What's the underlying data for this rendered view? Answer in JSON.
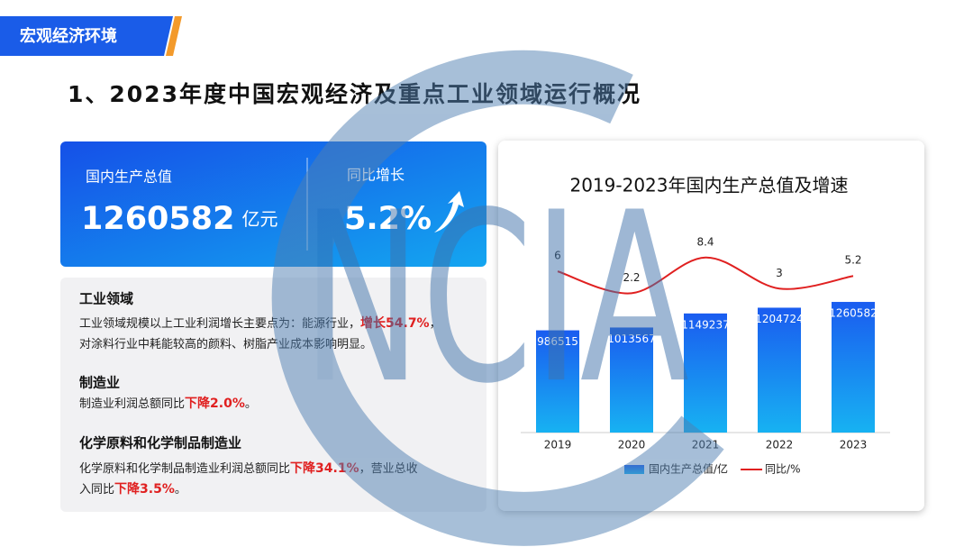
{
  "header": {
    "tab": "宏观经济环境",
    "title": "1、2023年度中国宏观经济及重点工业领域运行概况"
  },
  "watermark": "NCIA",
  "stats": [
    {
      "label": "国内生产总值",
      "value": "1260582",
      "unit": "亿元"
    },
    {
      "label": "同比增长",
      "value": "5.2%"
    }
  ],
  "sections": [
    {
      "heading": "工业领域",
      "lines": [
        [
          {
            "text": "工业领域规模以上工业利润增长主要点为：能源行业，"
          },
          {
            "strong": "增长54.7%"
          },
          {
            "text": "，"
          }
        ],
        [
          {
            "text": "对涂料行业中耗能较高的颜料、树脂产业成本影响明显。"
          }
        ]
      ]
    },
    {
      "heading": "制造业",
      "lines": [
        [
          {
            "text": "制造业利润总额同比"
          },
          {
            "strong": "下降2.0%"
          },
          {
            "text": "。"
          }
        ]
      ]
    },
    {
      "heading": "化学原料和化学制品制造业",
      "lines": [
        [
          {
            "text": "化学原料和化学制品制造业利润总额同比"
          },
          {
            "strong": "下降34.1%"
          },
          {
            "text": "，营业总收"
          }
        ],
        [
          {
            "text": "入同比"
          },
          {
            "strong": "下降3.5%"
          },
          {
            "text": "。"
          }
        ]
      ]
    }
  ],
  "chart_data": {
    "type": "bar",
    "title": "2019-2023年国内生产总值及增速",
    "categories": [
      "2019",
      "2020",
      "2021",
      "2022",
      "2023"
    ],
    "series": [
      {
        "name": "国内生产总值/亿",
        "type": "bar",
        "color": "#1a6cf0",
        "values": [
          986515,
          1013567,
          1149237,
          1204724,
          1260582
        ]
      },
      {
        "name": "同比/%",
        "type": "line",
        "axis": "y2",
        "color": "#e02020",
        "values": [
          6,
          2.2,
          8.4,
          3,
          5.2
        ]
      }
    ],
    "ylim": [
      0,
      2000000
    ],
    "y2lim": [
      -22,
      14
    ],
    "legend": "bottom"
  }
}
